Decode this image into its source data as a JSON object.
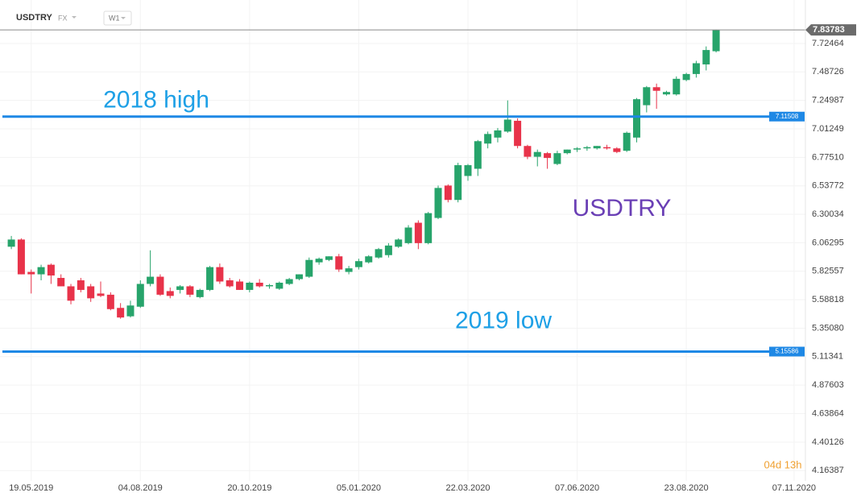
{
  "header": {
    "symbol": "USDTRY",
    "market": "FX",
    "timeframe": "W1"
  },
  "countdown": "04d 13h",
  "chart_data": {
    "type": "candlestick",
    "annotations": [
      {
        "text": "USDTRY",
        "color": "#6a3fb5"
      }
    ],
    "hlines": [
      {
        "value": 7.11508,
        "annotation": "2018 high",
        "color": "#1e88e5",
        "text_color": "#1ea0e6"
      },
      {
        "value": 5.15586,
        "annotation": "2019 low",
        "color": "#1e88e5",
        "text_color": "#1ea0e6"
      }
    ],
    "up_color": "#27a46b",
    "down_color": "#e8334a",
    "x": [
      "05.05.2019",
      "12.05.2019",
      "19.05.2019",
      "26.05.2019",
      "02.06.2019",
      "09.06.2019",
      "16.06.2019",
      "23.06.2019",
      "30.06.2019",
      "07.07.2019",
      "14.07.2019",
      "21.07.2019",
      "28.07.2019",
      "04.08.2019",
      "11.08.2019",
      "18.08.2019",
      "25.08.2019",
      "01.09.2019",
      "08.09.2019",
      "15.09.2019",
      "22.09.2019",
      "29.09.2019",
      "06.10.2019",
      "13.10.2019",
      "20.10.2019",
      "27.10.2019",
      "03.11.2019",
      "10.11.2019",
      "17.11.2019",
      "24.11.2019",
      "01.12.2019",
      "08.12.2019",
      "15.12.2019",
      "22.12.2019",
      "29.12.2019",
      "05.01.2020",
      "12.01.2020",
      "19.01.2020",
      "26.01.2020",
      "02.02.2020",
      "09.02.2020",
      "16.02.2020",
      "23.02.2020",
      "01.03.2020",
      "08.03.2020",
      "15.03.2020",
      "22.03.2020",
      "29.03.2020",
      "05.04.2020",
      "12.04.2020",
      "19.04.2020",
      "26.04.2020",
      "03.05.2020",
      "10.05.2020",
      "17.05.2020",
      "24.05.2020",
      "31.05.2020",
      "07.06.2020",
      "14.06.2020",
      "21.06.2020",
      "28.06.2020",
      "05.07.2020",
      "12.07.2020",
      "19.07.2020",
      "26.07.2020",
      "02.08.2020",
      "09.08.2020",
      "16.08.2020",
      "23.08.2020",
      "30.08.2020",
      "06.09.2020",
      "13.09.2020"
    ],
    "open": [
      6.03,
      6.09,
      5.82,
      5.8,
      5.88,
      5.77,
      5.7,
      5.75,
      5.7,
      5.64,
      5.63,
      5.52,
      5.45,
      5.53,
      5.72,
      5.78,
      5.66,
      5.67,
      5.7,
      5.61,
      5.67,
      5.86,
      5.75,
      5.74,
      5.67,
      5.73,
      5.7,
      5.68,
      5.72,
      5.76,
      5.78,
      5.9,
      5.92,
      5.95,
      5.82,
      5.86,
      5.9,
      5.94,
      5.96,
      6.03,
      6.06,
      6.23,
      6.06,
      6.27,
      6.54,
      6.42,
      6.62,
      6.68,
      6.89,
      6.94,
      6.99,
      7.08,
      6.87,
      6.78,
      6.81,
      6.72,
      6.81,
      6.84,
      6.85,
      6.85,
      6.86,
      6.85,
      6.83,
      6.94,
      7.21,
      7.36,
      7.3,
      7.3,
      7.42,
      7.47,
      7.55,
      7.66
    ],
    "high": [
      6.12,
      6.1,
      5.84,
      5.88,
      5.89,
      5.8,
      5.72,
      5.77,
      5.72,
      5.74,
      5.65,
      5.56,
      5.58,
      5.75,
      6.0,
      5.8,
      5.69,
      5.71,
      5.71,
      5.68,
      5.87,
      5.89,
      5.77,
      5.76,
      5.74,
      5.76,
      5.72,
      5.74,
      5.77,
      5.8,
      5.94,
      5.94,
      5.95,
      5.97,
      5.87,
      5.93,
      5.96,
      6.02,
      6.06,
      6.1,
      6.21,
      6.25,
      6.32,
      6.54,
      6.55,
      6.73,
      6.72,
      6.92,
      6.99,
      7.02,
      7.25,
      7.1,
      6.88,
      6.84,
      6.82,
      6.83,
      6.84,
      6.86,
      6.87,
      6.87,
      6.88,
      6.86,
      6.99,
      7.27,
      7.37,
      7.39,
      7.33,
      7.45,
      7.48,
      7.58,
      7.7,
      7.84
    ],
    "low": [
      6.01,
      5.8,
      5.64,
      5.75,
      5.72,
      5.7,
      5.55,
      5.65,
      5.57,
      5.61,
      5.5,
      5.43,
      5.44,
      5.52,
      5.7,
      5.62,
      5.6,
      5.64,
      5.61,
      5.6,
      5.66,
      5.72,
      5.69,
      5.67,
      5.65,
      5.69,
      5.68,
      5.67,
      5.71,
      5.75,
      5.77,
      5.88,
      5.91,
      5.82,
      5.8,
      5.84,
      5.89,
      5.93,
      5.94,
      6.02,
      6.05,
      6.01,
      6.05,
      6.26,
      6.4,
      6.4,
      6.58,
      6.62,
      6.85,
      6.9,
      6.98,
      6.85,
      6.76,
      6.7,
      6.68,
      6.71,
      6.8,
      6.82,
      6.83,
      6.84,
      6.84,
      6.81,
      6.82,
      6.9,
      7.15,
      7.18,
      7.29,
      7.29,
      7.41,
      7.44,
      7.5,
      7.65
    ],
    "close": [
      6.09,
      5.8,
      5.8,
      5.86,
      5.79,
      5.7,
      5.58,
      5.67,
      5.6,
      5.62,
      5.51,
      5.44,
      5.54,
      5.72,
      5.78,
      5.63,
      5.62,
      5.7,
      5.63,
      5.67,
      5.86,
      5.74,
      5.7,
      5.67,
      5.73,
      5.7,
      5.71,
      5.73,
      5.76,
      5.8,
      5.92,
      5.93,
      5.95,
      5.84,
      5.85,
      5.91,
      5.95,
      6.01,
      6.04,
      6.09,
      6.19,
      6.06,
      6.31,
      6.52,
      6.42,
      6.71,
      6.71,
      6.91,
      6.97,
      7.0,
      7.09,
      6.87,
      6.78,
      6.82,
      6.77,
      6.81,
      6.84,
      6.85,
      6.86,
      6.87,
      6.85,
      6.82,
      6.98,
      7.26,
      7.36,
      7.33,
      7.32,
      7.43,
      7.47,
      7.56,
      7.67,
      7.83783
    ],
    "xlim": [
      "27.04.2019",
      "15.11.2020"
    ],
    "xticks": [
      "19.05.2019",
      "04.08.2019",
      "20.10.2019",
      "05.01.2020",
      "22.03.2020",
      "07.06.2020",
      "23.08.2020",
      "07.11.2020"
    ],
    "ylim": [
      4.078,
      8.087
    ],
    "yticks": [
      7.72464,
      7.48726,
      7.24987,
      7.01249,
      {
        "value": 6.7751,
        "label": "6.77510"
      },
      6.53772,
      6.30034,
      6.06295,
      5.82557,
      5.58818,
      {
        "value": 5.3508,
        "label": "5.35080"
      },
      5.11341,
      4.87603,
      4.63864,
      4.40126,
      4.16387
    ],
    "grid": true
  }
}
